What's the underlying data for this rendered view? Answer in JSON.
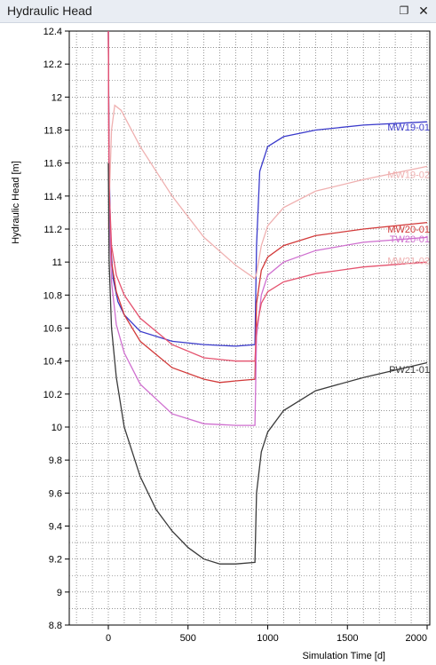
{
  "window": {
    "title": "Hydraulic Head",
    "float_icon": "float-icon",
    "close_icon": "close-icon"
  },
  "chart_data": {
    "type": "line",
    "xlabel": "Simulation Time [d]",
    "ylabel": "Hydraulic Head [m]",
    "xlim": [
      -200,
      2000
    ],
    "ylim": [
      8.8,
      12.4
    ],
    "xticks": [
      0,
      500,
      1000,
      1500,
      2000
    ],
    "yticks": [
      8.8,
      9,
      9.2,
      9.4,
      9.6,
      9.8,
      10,
      10.2,
      10.4,
      10.6,
      10.8,
      11,
      11.2,
      11.4,
      11.6,
      11.8,
      12,
      12.2,
      12.4
    ],
    "grid": true,
    "series": [
      {
        "name": "MW19-01",
        "color": "#3a3acb",
        "x": [
          0,
          5,
          15,
          30,
          60,
          100,
          200,
          400,
          600,
          800,
          920,
          930,
          950,
          1000,
          1100,
          1300,
          1600,
          2000
        ],
        "y": [
          12.4,
          11.6,
          11.1,
          10.9,
          10.76,
          10.68,
          10.58,
          10.52,
          10.5,
          10.49,
          10.5,
          11.1,
          11.55,
          11.7,
          11.76,
          11.8,
          11.83,
          11.85
        ]
      },
      {
        "name": "MW19-02",
        "color": "#efb0b0",
        "x": [
          0,
          20,
          40,
          80,
          200,
          400,
          600,
          800,
          920,
          930,
          960,
          1000,
          1100,
          1300,
          1600,
          2000
        ],
        "y": [
          11.2,
          11.8,
          11.95,
          11.92,
          11.7,
          11.4,
          11.15,
          10.98,
          10.9,
          10.93,
          11.1,
          11.22,
          11.33,
          11.43,
          11.5,
          11.58
        ]
      },
      {
        "name": "MW20-01",
        "color": "#d23a3a",
        "x": [
          0,
          5,
          20,
          50,
          100,
          200,
          400,
          600,
          700,
          800,
          920,
          930,
          960,
          1000,
          1100,
          1300,
          1600,
          2000
        ],
        "y": [
          12.4,
          11.4,
          11.0,
          10.82,
          10.68,
          10.52,
          10.36,
          10.29,
          10.27,
          10.28,
          10.29,
          10.75,
          10.95,
          11.03,
          11.1,
          11.16,
          11.2,
          11.24
        ]
      },
      {
        "name": "TW20-01",
        "color": "#cf6fcf",
        "x": [
          0,
          5,
          20,
          50,
          100,
          200,
          400,
          600,
          800,
          920,
          930,
          960,
          1000,
          1100,
          1300,
          1600,
          2000
        ],
        "y": [
          12.4,
          11.3,
          10.88,
          10.62,
          10.45,
          10.26,
          10.08,
          10.02,
          10.01,
          10.01,
          10.55,
          10.8,
          10.92,
          11.0,
          11.07,
          11.12,
          11.15
        ]
      },
      {
        "name": "MW21-02",
        "color": "#e4526e",
        "x": [
          0,
          5,
          20,
          50,
          100,
          200,
          400,
          600,
          800,
          920,
          930,
          960,
          1000,
          1100,
          1300,
          1600,
          2000
        ],
        "y": [
          12.4,
          11.45,
          11.1,
          10.92,
          10.8,
          10.66,
          10.5,
          10.42,
          10.4,
          10.4,
          10.6,
          10.75,
          10.82,
          10.88,
          10.93,
          10.97,
          11.0
        ]
      },
      {
        "name": "PW21-01",
        "color": "#3a3a3a",
        "x": [
          0,
          5,
          20,
          50,
          100,
          200,
          300,
          400,
          500,
          600,
          700,
          800,
          920,
          930,
          960,
          1000,
          1100,
          1300,
          1600,
          2000
        ],
        "y": [
          11.6,
          11.0,
          10.6,
          10.3,
          10.0,
          9.7,
          9.5,
          9.37,
          9.27,
          9.2,
          9.17,
          9.17,
          9.18,
          9.6,
          9.85,
          9.97,
          10.1,
          10.22,
          10.3,
          10.39
        ]
      }
    ],
    "labels": [
      {
        "text": "MW19-01",
        "x": 1870,
        "y": 11.82,
        "color": "#3a3acb"
      },
      {
        "text": "MW19-02",
        "x": 1870,
        "y": 11.53,
        "color": "#efb0b0"
      },
      {
        "text": "MW20-01",
        "x": 1870,
        "y": 11.2,
        "color": "#d23a3a"
      },
      {
        "text": "TW20-01",
        "x": 1870,
        "y": 11.14,
        "color": "#cf6fcf"
      },
      {
        "text": "MW21-02",
        "x": 1870,
        "y": 11.01,
        "color": "#efb0b0"
      },
      {
        "text": "PW21-01",
        "x": 1870,
        "y": 10.35,
        "color": "#3a3a3a"
      }
    ]
  }
}
